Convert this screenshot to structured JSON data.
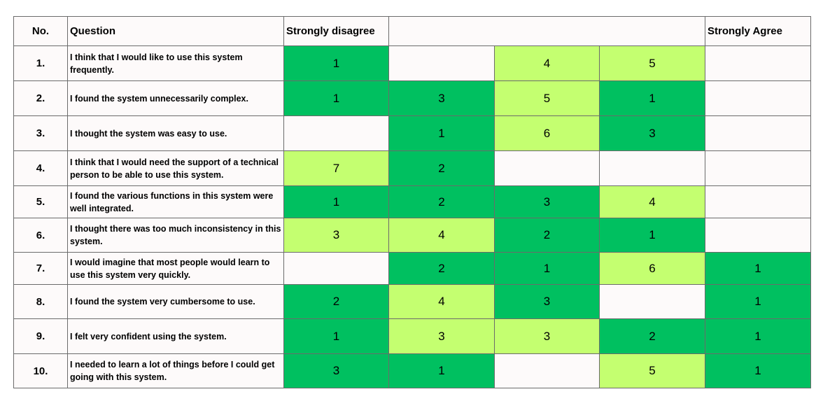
{
  "chart_data": {
    "type": "table",
    "header": {
      "no": "No.",
      "question": "Question",
      "left_label": "Strongly disagree",
      "right_label": "Strongly Agree"
    },
    "scale_columns": [
      1,
      2,
      3,
      4,
      5
    ],
    "colors": {
      "dark": "#00c060",
      "light": "#c4ff70",
      "empty": "#fdfafa"
    },
    "rows": [
      {
        "no": "1.",
        "question": "I think that I would like to use this system frequently.",
        "cells": [
          {
            "v": "1",
            "c": "dark"
          },
          {
            "v": "",
            "c": "empty"
          },
          {
            "v": "4",
            "c": "light"
          },
          {
            "v": "5",
            "c": "light"
          },
          {
            "v": "",
            "c": "empty"
          }
        ]
      },
      {
        "no": "2.",
        "question": "I found the system unnecessarily complex.",
        "cells": [
          {
            "v": "1",
            "c": "dark"
          },
          {
            "v": "3",
            "c": "dark"
          },
          {
            "v": "5",
            "c": "light"
          },
          {
            "v": "1",
            "c": "dark"
          },
          {
            "v": "",
            "c": "empty"
          }
        ]
      },
      {
        "no": "3.",
        "question": "I thought the system was easy to use.",
        "cells": [
          {
            "v": "",
            "c": "empty"
          },
          {
            "v": "1",
            "c": "dark"
          },
          {
            "v": "6",
            "c": "light"
          },
          {
            "v": "3",
            "c": "dark"
          },
          {
            "v": "",
            "c": "empty"
          }
        ]
      },
      {
        "no": "4.",
        "question": "I think that I would need the support of a technical person to be able to use this system.",
        "cells": [
          {
            "v": "7",
            "c": "light"
          },
          {
            "v": "2",
            "c": "dark"
          },
          {
            "v": "",
            "c": "empty"
          },
          {
            "v": "",
            "c": "empty"
          },
          {
            "v": "",
            "c": "empty"
          }
        ]
      },
      {
        "no": "5.",
        "question": "I found the various functions in this system were well integrated.",
        "cells": [
          {
            "v": "1",
            "c": "dark"
          },
          {
            "v": "2",
            "c": "dark"
          },
          {
            "v": "3",
            "c": "dark"
          },
          {
            "v": "4",
            "c": "light"
          },
          {
            "v": "",
            "c": "empty"
          }
        ]
      },
      {
        "no": "6.",
        "question": "I thought there was too much inconsistency in this system.",
        "cells": [
          {
            "v": "3",
            "c": "light"
          },
          {
            "v": "4",
            "c": "light"
          },
          {
            "v": "2",
            "c": "dark"
          },
          {
            "v": "1",
            "c": "dark"
          },
          {
            "v": "",
            "c": "empty"
          }
        ]
      },
      {
        "no": "7.",
        "question": "I would imagine that most people would learn to use this system very quickly.",
        "cells": [
          {
            "v": "",
            "c": "empty"
          },
          {
            "v": "2",
            "c": "dark"
          },
          {
            "v": "1",
            "c": "dark"
          },
          {
            "v": "6",
            "c": "light"
          },
          {
            "v": "1",
            "c": "dark"
          }
        ]
      },
      {
        "no": "8.",
        "question": "I found the system very cumbersome to use.",
        "cells": [
          {
            "v": "2",
            "c": "dark"
          },
          {
            "v": "4",
            "c": "light"
          },
          {
            "v": "3",
            "c": "dark"
          },
          {
            "v": "",
            "c": "empty"
          },
          {
            "v": "1",
            "c": "dark"
          }
        ]
      },
      {
        "no": "9.",
        "question": "I felt very confident using the system.",
        "cells": [
          {
            "v": "1",
            "c": "dark"
          },
          {
            "v": "3",
            "c": "light"
          },
          {
            "v": "3",
            "c": "light"
          },
          {
            "v": "2",
            "c": "dark"
          },
          {
            "v": "1",
            "c": "dark"
          }
        ]
      },
      {
        "no": "10.",
        "question": "I needed to learn a lot of things before I could get going with this system.",
        "cells": [
          {
            "v": "3",
            "c": "dark"
          },
          {
            "v": "1",
            "c": "dark"
          },
          {
            "v": "",
            "c": "empty"
          },
          {
            "v": "5",
            "c": "light"
          },
          {
            "v": "1",
            "c": "dark"
          }
        ]
      }
    ]
  }
}
